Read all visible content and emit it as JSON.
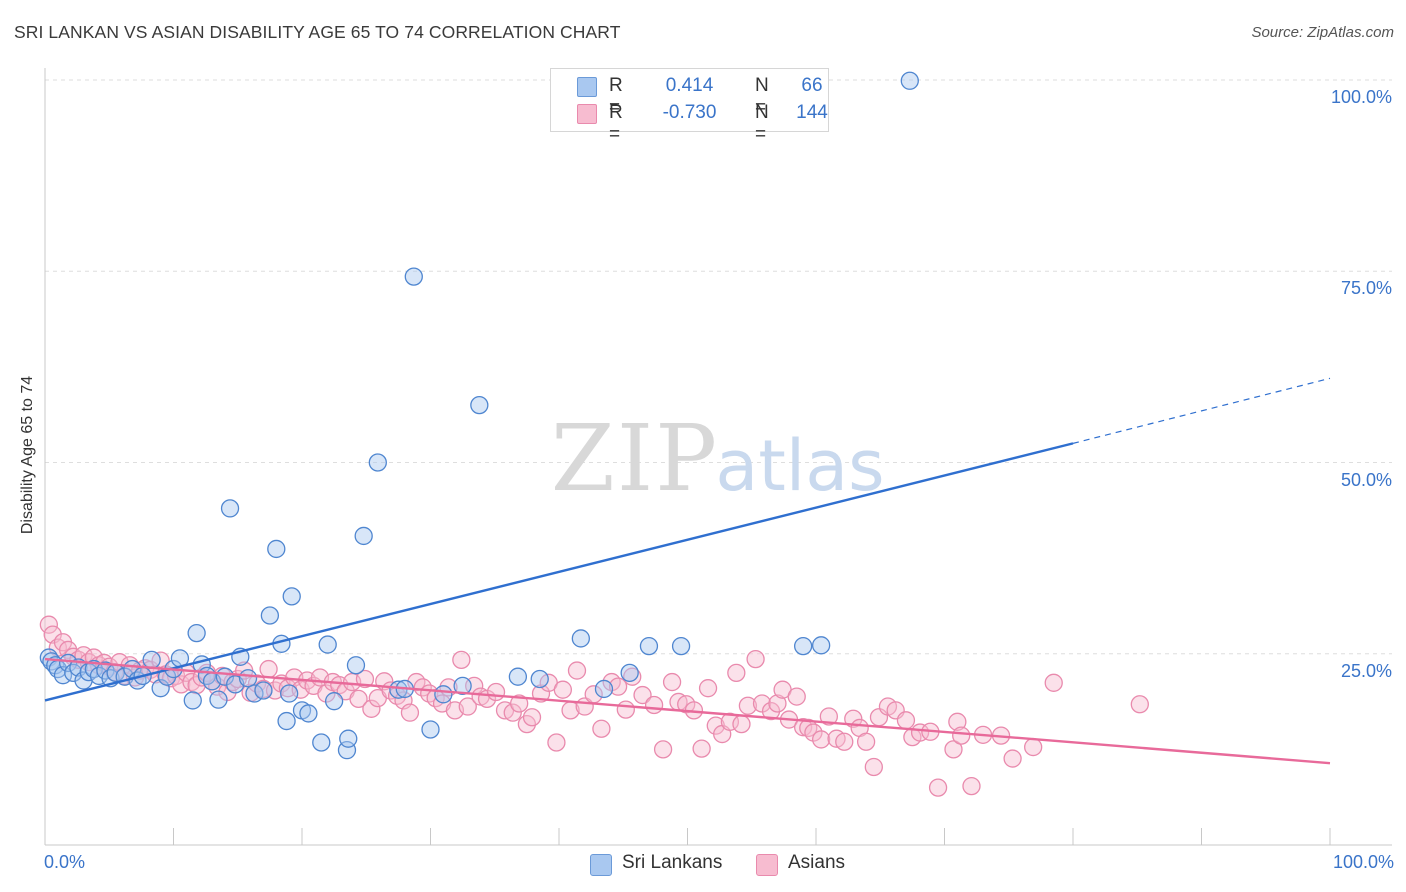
{
  "title": "SRI LANKAN VS ASIAN DISABILITY AGE 65 TO 74 CORRELATION CHART",
  "source": "Source: ZipAtlas.com",
  "legend": {
    "rows": [
      {
        "r_label": "R =",
        "r_value": "0.414",
        "n_label": "N =",
        "n_value": "66",
        "color": "#a9c8f0",
        "border": "#6b9ad8"
      },
      {
        "r_label": "R =",
        "r_value": "-0.730",
        "n_label": "N =",
        "n_value": "144",
        "color": "#f7bcd0",
        "border": "#e98aad"
      }
    ]
  },
  "bottom_legend": {
    "series1": "Sri Lankans",
    "series2": "Asians"
  },
  "colors": {
    "blue_fill": "#a9c8f0",
    "blue_stroke": "#4f86d0",
    "blue_line": "#2f6fcf",
    "pink_fill": "#f7bcd0",
    "pink_stroke": "#e98aad",
    "pink_line": "#e86a9a",
    "tick_text": "#3a74c9"
  },
  "chart_data": {
    "type": "scatter",
    "title": "SRI LANKAN VS ASIAN DISABILITY AGE 65 TO 74 CORRELATION CHART",
    "xlabel": "",
    "ylabel": "Disability Age 65 to 74",
    "x_tick_labels": [
      "0.0%",
      "100.0%"
    ],
    "y_tick_labels": [
      "25.0%",
      "50.0%",
      "75.0%",
      "100.0%"
    ],
    "xlim": [
      0,
      100
    ],
    "ylim": [
      0,
      102
    ],
    "grid": true,
    "series": [
      {
        "name": "Sri Lankans",
        "trend": {
          "x0": 0,
          "y0": 18.9,
          "x1": 80,
          "y1": 52.5,
          "dash_to_x": 100,
          "dash_to_y": 61.0
        },
        "points": [
          [
            0.3,
            24.5
          ],
          [
            0.5,
            24
          ],
          [
            0.8,
            23.5
          ],
          [
            1.0,
            23
          ],
          [
            1.4,
            22.2
          ],
          [
            1.8,
            23.8
          ],
          [
            2.2,
            22.5
          ],
          [
            2.6,
            23.2
          ],
          [
            3.0,
            21.5
          ],
          [
            3.4,
            22.6
          ],
          [
            3.8,
            23
          ],
          [
            4.2,
            22.1
          ],
          [
            4.7,
            22.8
          ],
          [
            5.1,
            21.8
          ],
          [
            5.5,
            22.5
          ],
          [
            6.2,
            22
          ],
          [
            6.8,
            23
          ],
          [
            7.2,
            21.5
          ],
          [
            7.6,
            22.1
          ],
          [
            8.3,
            24.2
          ],
          [
            9.0,
            20.5
          ],
          [
            9.5,
            22
          ],
          [
            10.0,
            23
          ],
          [
            10.5,
            24.4
          ],
          [
            11.5,
            18.9
          ],
          [
            11.8,
            27.7
          ],
          [
            12.2,
            23.6
          ],
          [
            12.6,
            22.1
          ],
          [
            13.0,
            21.4
          ],
          [
            13.5,
            19
          ],
          [
            14.0,
            22
          ],
          [
            14.4,
            44
          ],
          [
            14.8,
            21
          ],
          [
            15.2,
            24.6
          ],
          [
            15.8,
            21.8
          ],
          [
            16.3,
            19.8
          ],
          [
            17.0,
            20.2
          ],
          [
            17.5,
            30
          ],
          [
            18.0,
            38.7
          ],
          [
            18.4,
            26.3
          ],
          [
            18.8,
            16.2
          ],
          [
            19.0,
            19.8
          ],
          [
            19.2,
            32.5
          ],
          [
            20.0,
            17.6
          ],
          [
            20.5,
            17.2
          ],
          [
            21.5,
            13.4
          ],
          [
            22.0,
            26.2
          ],
          [
            22.5,
            18.8
          ],
          [
            23.5,
            12.4
          ],
          [
            23.6,
            13.9
          ],
          [
            24.2,
            23.5
          ],
          [
            24.8,
            40.4
          ],
          [
            25.9,
            50
          ],
          [
            27.5,
            20.3
          ],
          [
            28.0,
            20.4
          ],
          [
            28.7,
            74.3
          ],
          [
            30.0,
            15.1
          ],
          [
            31.0,
            19.7
          ],
          [
            32.5,
            20.8
          ],
          [
            33.8,
            57.5
          ],
          [
            36.8,
            22
          ],
          [
            38.5,
            21.7
          ],
          [
            41.7,
            27
          ],
          [
            43.5,
            20.4
          ],
          [
            45.5,
            22.5
          ],
          [
            47.0,
            26
          ],
          [
            48.8,
            100.2
          ],
          [
            59.0,
            26
          ],
          [
            60.4,
            26.1
          ],
          [
            67.3,
            99.9
          ],
          [
            49.5,
            26
          ]
        ]
      },
      {
        "name": "Asians",
        "trend": {
          "x0": 0,
          "y0": 24.3,
          "x1": 100,
          "y1": 10.7
        },
        "points": [
          [
            0.3,
            28.8
          ],
          [
            0.6,
            27.5
          ],
          [
            1.0,
            25.8
          ],
          [
            1.4,
            26.5
          ],
          [
            1.8,
            25.5
          ],
          [
            2.2,
            24.6
          ],
          [
            2.6,
            24.2
          ],
          [
            3.0,
            24.8
          ],
          [
            3.4,
            23.9
          ],
          [
            3.8,
            24.5
          ],
          [
            4.2,
            23.5
          ],
          [
            4.6,
            23.8
          ],
          [
            5.0,
            23.3
          ],
          [
            5.4,
            22.6
          ],
          [
            5.8,
            23.9
          ],
          [
            6.2,
            22.1
          ],
          [
            6.6,
            23.5
          ],
          [
            7.0,
            21.9
          ],
          [
            7.4,
            22.8
          ],
          [
            7.8,
            23.1
          ],
          [
            8.2,
            22.9
          ],
          [
            8.6,
            22.3
          ],
          [
            9.0,
            24.1
          ],
          [
            9.4,
            22.3
          ],
          [
            9.8,
            21.8
          ],
          [
            10.2,
            22.1
          ],
          [
            10.6,
            21
          ],
          [
            11.0,
            22.5
          ],
          [
            11.4,
            21.3
          ],
          [
            11.8,
            20.9
          ],
          [
            12.2,
            21.9
          ],
          [
            12.6,
            22.5
          ],
          [
            13.0,
            21.4
          ],
          [
            13.4,
            20.7
          ],
          [
            13.8,
            22.1
          ],
          [
            14.2,
            20
          ],
          [
            14.6,
            21.3
          ],
          [
            15.0,
            21.7
          ],
          [
            15.5,
            22.8
          ],
          [
            16.0,
            19.9
          ],
          [
            16.5,
            21.1
          ],
          [
            17.0,
            20.4
          ],
          [
            17.4,
            23
          ],
          [
            17.9,
            20.2
          ],
          [
            18.4,
            21.1
          ],
          [
            18.9,
            20.5
          ],
          [
            19.4,
            21.9
          ],
          [
            19.9,
            20.3
          ],
          [
            20.4,
            21.5
          ],
          [
            20.9,
            20.8
          ],
          [
            21.4,
            21.9
          ],
          [
            21.9,
            19.8
          ],
          [
            22.4,
            21.3
          ],
          [
            22.9,
            20.9
          ],
          [
            23.4,
            20.1
          ],
          [
            23.9,
            21.3
          ],
          [
            24.4,
            19.1
          ],
          [
            24.9,
            21.7
          ],
          [
            25.4,
            17.8
          ],
          [
            25.9,
            19.2
          ],
          [
            26.4,
            21.4
          ],
          [
            26.9,
            20.2
          ],
          [
            27.4,
            19.5
          ],
          [
            27.9,
            18.9
          ],
          [
            28.4,
            17.3
          ],
          [
            28.9,
            21.3
          ],
          [
            29.4,
            20.6
          ],
          [
            29.9,
            19.8
          ],
          [
            30.4,
            19.2
          ],
          [
            30.9,
            18.5
          ],
          [
            31.4,
            20.6
          ],
          [
            31.9,
            17.6
          ],
          [
            32.4,
            24.2
          ],
          [
            32.9,
            18.1
          ],
          [
            33.4,
            20.8
          ],
          [
            33.9,
            19.4
          ],
          [
            34.4,
            19.1
          ],
          [
            35.1,
            20
          ],
          [
            35.8,
            17.6
          ],
          [
            36.4,
            17.3
          ],
          [
            36.9,
            18.5
          ],
          [
            37.5,
            15.8
          ],
          [
            37.9,
            16.7
          ],
          [
            38.6,
            19.8
          ],
          [
            39.2,
            21.2
          ],
          [
            39.8,
            13.4
          ],
          [
            40.3,
            20.3
          ],
          [
            40.9,
            17.6
          ],
          [
            41.4,
            22.8
          ],
          [
            42.0,
            18.1
          ],
          [
            42.7,
            19.7
          ],
          [
            43.3,
            15.2
          ],
          [
            44.1,
            21.3
          ],
          [
            44.6,
            20.7
          ],
          [
            45.2,
            17.7
          ],
          [
            45.7,
            22
          ],
          [
            46.5,
            19.6
          ],
          [
            47.4,
            18.3
          ],
          [
            48.1,
            12.5
          ],
          [
            48.8,
            21.3
          ],
          [
            49.3,
            18.7
          ],
          [
            49.9,
            18.4
          ],
          [
            50.5,
            17.6
          ],
          [
            51.1,
            12.6
          ],
          [
            51.6,
            20.5
          ],
          [
            52.2,
            15.6
          ],
          [
            52.7,
            14.5
          ],
          [
            53.3,
            16.1
          ],
          [
            53.8,
            22.5
          ],
          [
            54.2,
            15.8
          ],
          [
            54.7,
            18.2
          ],
          [
            55.3,
            24.3
          ],
          [
            55.8,
            18.5
          ],
          [
            56.5,
            17.5
          ],
          [
            57.0,
            18.5
          ],
          [
            57.4,
            20.3
          ],
          [
            57.9,
            16.4
          ],
          [
            58.5,
            19.4
          ],
          [
            59.0,
            15.4
          ],
          [
            59.4,
            15.3
          ],
          [
            59.8,
            14.7
          ],
          [
            60.4,
            13.8
          ],
          [
            61.0,
            16.8
          ],
          [
            61.6,
            13.9
          ],
          [
            62.2,
            13.5
          ],
          [
            62.9,
            16.5
          ],
          [
            63.4,
            15.3
          ],
          [
            63.9,
            13.5
          ],
          [
            64.5,
            10.2
          ],
          [
            64.9,
            16.7
          ],
          [
            65.6,
            18.1
          ],
          [
            66.2,
            17.6
          ],
          [
            67.0,
            16.3
          ],
          [
            67.5,
            14.1
          ],
          [
            68.1,
            14.7
          ],
          [
            68.9,
            14.8
          ],
          [
            69.5,
            7.5
          ],
          [
            70.7,
            12.5
          ],
          [
            71.0,
            16.1
          ],
          [
            71.3,
            14.3
          ],
          [
            72.1,
            7.7
          ],
          [
            73.0,
            14.4
          ],
          [
            74.4,
            14.3
          ],
          [
            75.3,
            11.3
          ],
          [
            76.9,
            12.8
          ],
          [
            78.5,
            21.2
          ],
          [
            85.2,
            18.4
          ]
        ]
      }
    ]
  }
}
